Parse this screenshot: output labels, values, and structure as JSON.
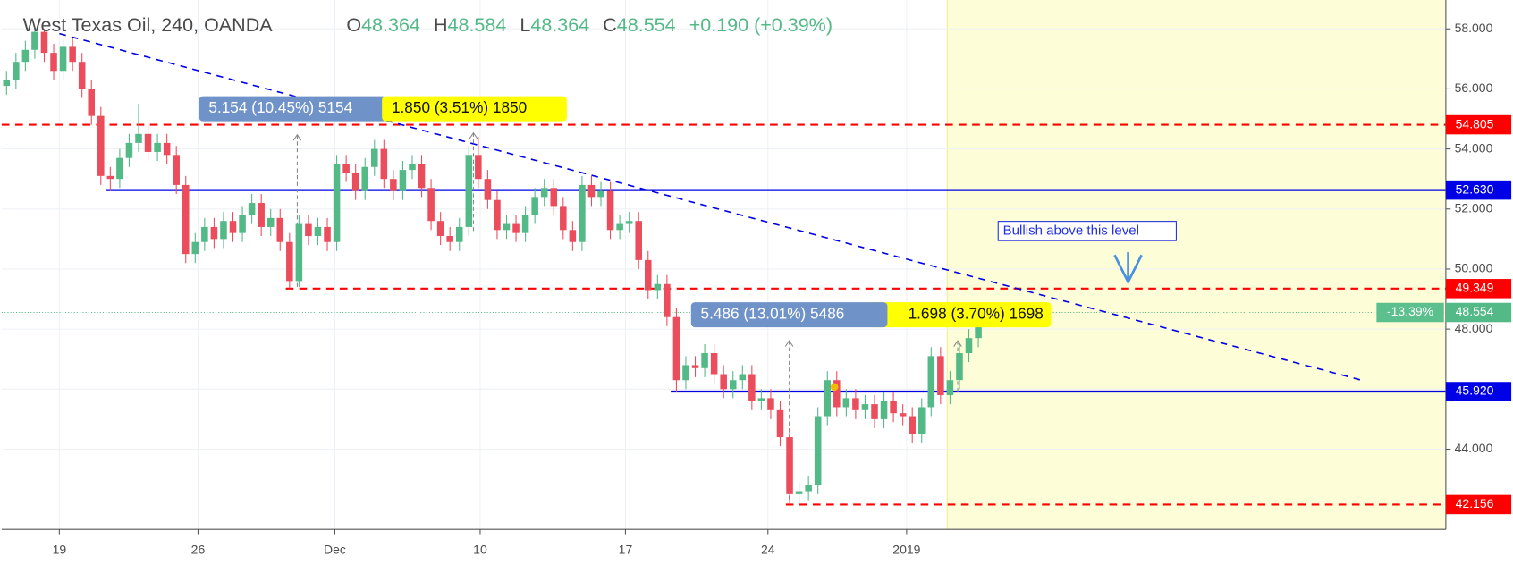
{
  "chart_data": {
    "type": "candlestick",
    "title": "West Texas Oil, 240, OANDA",
    "ohlc_header": [
      {
        "key": "O",
        "value": 48.364
      },
      {
        "key": "H",
        "value": 48.584
      },
      {
        "key": "L",
        "value": 48.364
      },
      {
        "key": "C",
        "value": 48.554
      }
    ],
    "change": "+0.190 (+0.39%)",
    "x": [
      0,
      1,
      2,
      3,
      4,
      5,
      6,
      7,
      8,
      9,
      10,
      11,
      12,
      13,
      14,
      15,
      16,
      17,
      18,
      19,
      20,
      21,
      22,
      23,
      24,
      25,
      26,
      27,
      28,
      29,
      30,
      31,
      32,
      33,
      34,
      35,
      36,
      37,
      38,
      39,
      40,
      41,
      42,
      43,
      44,
      45,
      46,
      47,
      48,
      49,
      50,
      51,
      52,
      53,
      54,
      55,
      56,
      57,
      58,
      59,
      60,
      61,
      62,
      63,
      64,
      65,
      66,
      67,
      68,
      69,
      70,
      71,
      72,
      73,
      74,
      75,
      76,
      77,
      78,
      79,
      80,
      81,
      82,
      83,
      84,
      85,
      86,
      87,
      88,
      89,
      90,
      91,
      92,
      93,
      94,
      95,
      96,
      97,
      98,
      99,
      100,
      101,
      102,
      103,
      104
    ],
    "open": [
      56.1,
      56.3,
      56.9,
      57.3,
      57.9,
      57.2,
      56.6,
      57.4,
      56.9,
      56.0,
      55.1,
      53.1,
      53.0,
      53.7,
      54.2,
      54.5,
      53.9,
      54.2,
      53.8,
      52.8,
      50.5,
      50.9,
      51.4,
      51.0,
      51.6,
      51.2,
      51.8,
      52.2,
      51.4,
      51.7,
      50.9,
      49.6,
      51.5,
      51.1,
      51.4,
      50.9,
      53.5,
      53.2,
      52.6,
      53.4,
      54.0,
      53.0,
      52.6,
      53.3,
      53.5,
      52.7,
      51.6,
      51.1,
      50.9,
      51.4,
      53.8,
      53.0,
      52.3,
      51.3,
      51.5,
      51.2,
      51.8,
      52.4,
      52.7,
      52.1,
      51.3,
      50.9,
      52.8,
      52.4,
      52.6,
      51.3,
      51.5,
      51.6,
      50.3,
      49.3,
      49.5,
      48.4,
      46.3,
      46.8,
      46.7,
      47.2,
      46.5,
      46.0,
      46.3,
      46.5,
      45.6,
      45.7,
      45.3,
      44.4,
      42.5,
      42.6,
      42.8,
      45.1,
      46.3,
      45.4,
      45.7,
      45.3,
      45.5,
      45.0,
      45.6,
      45.2,
      45.1,
      44.5,
      45.4,
      47.1,
      45.8,
      46.3,
      47.2,
      47.7,
      48.364
    ],
    "high": [
      56.6,
      57.2,
      57.6,
      58.0,
      58.0,
      57.5,
      57.7,
      57.7,
      57.2,
      56.3,
      55.4,
      53.4,
      54.0,
      54.5,
      55.5,
      54.8,
      54.5,
      54.5,
      54.1,
      53.1,
      51.2,
      51.7,
      51.7,
      51.9,
      51.9,
      52.1,
      52.5,
      52.5,
      52.0,
      52.0,
      51.2,
      51.8,
      51.8,
      51.7,
      51.7,
      53.8,
      53.8,
      53.5,
      53.7,
      54.3,
      54.3,
      53.3,
      53.6,
      53.8,
      53.8,
      53.0,
      51.9,
      51.4,
      51.7,
      54.1,
      54.4,
      53.3,
      52.6,
      51.8,
      51.8,
      52.1,
      52.7,
      53.0,
      53.0,
      52.4,
      51.6,
      53.1,
      53.1,
      52.9,
      52.9,
      51.8,
      51.9,
      51.9,
      50.6,
      49.8,
      49.8,
      48.7,
      47.1,
      47.1,
      47.5,
      47.5,
      46.8,
      46.6,
      46.8,
      46.8,
      46.0,
      46.0,
      45.6,
      44.7,
      42.9,
      43.1,
      45.4,
      46.6,
      46.6,
      46.0,
      46.0,
      45.8,
      45.8,
      45.9,
      45.9,
      45.5,
      45.4,
      45.7,
      47.4,
      47.4,
      46.6,
      47.5,
      48.0,
      48.6,
      48.584
    ],
    "low": [
      55.8,
      56.0,
      56.6,
      57.0,
      56.9,
      56.3,
      56.3,
      56.6,
      55.7,
      54.8,
      52.8,
      52.6,
      52.7,
      53.4,
      53.9,
      53.6,
      53.6,
      53.5,
      52.5,
      50.2,
      50.2,
      50.6,
      50.7,
      50.7,
      50.9,
      50.9,
      51.5,
      51.1,
      51.1,
      50.6,
      49.35,
      49.4,
      50.8,
      50.8,
      50.6,
      50.6,
      52.9,
      52.3,
      52.3,
      53.1,
      52.7,
      52.3,
      52.3,
      53.0,
      52.4,
      51.3,
      50.8,
      50.6,
      50.6,
      51.1,
      52.7,
      52.0,
      51.0,
      51.0,
      50.9,
      50.9,
      51.5,
      52.1,
      51.8,
      51.0,
      50.6,
      50.6,
      52.1,
      52.1,
      51.0,
      51.0,
      51.2,
      50.0,
      49.0,
      49.0,
      48.1,
      45.92,
      46.0,
      46.4,
      46.4,
      46.2,
      45.7,
      45.7,
      46.0,
      45.3,
      45.3,
      45.0,
      44.1,
      42.156,
      42.2,
      42.3,
      42.5,
      44.8,
      45.1,
      45.1,
      45.0,
      45.0,
      44.7,
      44.7,
      44.9,
      44.8,
      44.2,
      44.2,
      45.1,
      45.5,
      45.5,
      46.0,
      46.9,
      47.4,
      48.364
    ],
    "close": [
      56.3,
      56.9,
      57.3,
      57.9,
      57.2,
      56.6,
      57.4,
      56.9,
      56.0,
      55.1,
      53.1,
      53.0,
      53.7,
      54.2,
      54.5,
      53.9,
      54.2,
      53.8,
      52.8,
      50.5,
      50.9,
      51.4,
      51.0,
      51.6,
      51.2,
      51.8,
      52.2,
      51.4,
      51.7,
      50.9,
      49.6,
      51.5,
      51.1,
      51.4,
      50.9,
      53.5,
      53.2,
      52.6,
      53.4,
      54.0,
      53.0,
      52.6,
      53.3,
      53.5,
      52.7,
      51.6,
      51.1,
      50.9,
      51.4,
      53.8,
      53.0,
      52.3,
      51.3,
      51.5,
      51.2,
      51.8,
      52.4,
      52.7,
      52.1,
      51.3,
      50.9,
      52.8,
      52.4,
      52.6,
      51.3,
      51.5,
      51.6,
      50.3,
      49.3,
      49.5,
      48.4,
      46.3,
      46.8,
      46.7,
      47.2,
      46.5,
      46.0,
      46.3,
      46.5,
      45.6,
      45.7,
      45.3,
      44.4,
      42.5,
      42.6,
      42.8,
      45.1,
      46.3,
      45.4,
      45.7,
      45.3,
      45.5,
      45.0,
      45.6,
      45.2,
      45.1,
      44.5,
      45.4,
      47.1,
      45.8,
      46.3,
      47.2,
      47.7,
      48.3,
      48.554
    ],
    "up_color": "#53b987",
    "down_color": "#eb4d5c",
    "xlim": [
      -0.51,
      152.55
    ],
    "ylim": [
      41.33,
      58.96
    ],
    "xticks": [
      {
        "value": 5.6,
        "label": "19"
      },
      {
        "value": 20.3,
        "label": "26"
      },
      {
        "value": 34.8,
        "label": "Dec"
      },
      {
        "value": 50.2,
        "label": "10"
      },
      {
        "value": 65.6,
        "label": "17"
      },
      {
        "value": 80.7,
        "label": "24"
      },
      {
        "value": 95.4,
        "label": "2019"
      }
    ],
    "yticks": [
      {
        "value": 44,
        "label": "44.000"
      },
      {
        "value": 46,
        "label": "46.000"
      },
      {
        "value": 48,
        "label": "48.000"
      },
      {
        "value": 50,
        "label": "50.000"
      },
      {
        "value": 52,
        "label": "52.000"
      },
      {
        "value": 54,
        "label": "54.000"
      },
      {
        "value": 56,
        "label": "56.000"
      },
      {
        "value": 58,
        "label": "58.000"
      }
    ],
    "grid": true,
    "levels": [
      {
        "value": 54.805,
        "from": -0.51,
        "color": "#ff0000",
        "style": "dashed"
      },
      {
        "value": 52.63,
        "label": "52.630",
        "from": 10.5,
        "color": "#0000e6",
        "style": "solid"
      },
      {
        "value": 49.349,
        "from": 29.6,
        "color": "#ff0000",
        "style": "dashed"
      },
      {
        "value": 45.92,
        "label": "45.920",
        "from": 70.4,
        "color": "#0000e6",
        "style": "solid"
      },
      {
        "value": 42.156,
        "from": 82.6,
        "color": "#ff0000",
        "style": "dashed"
      }
    ],
    "trendline": {
      "x": [
        5.6,
        143.6
      ],
      "y": [
        57.84,
        46.3
      ],
      "color": "#0000e6"
    },
    "highlight_from": 99.7,
    "measures": [
      {
        "text": "5.154 (10.45%) 5154",
        "color": "#6f92c8"
      },
      {
        "text": "1.850 (3.51%) 1850",
        "color": "#ffff00"
      },
      {
        "text": "1.698 (3.70%) 1698",
        "color": "#ffff00"
      },
      {
        "text": "5.486 (13.01%) 5486",
        "color": "#6f92c8"
      }
    ],
    "last_price": {
      "value": 48.554,
      "change_label": "-13.39%"
    },
    "annotation": "Bullish above this level"
  }
}
